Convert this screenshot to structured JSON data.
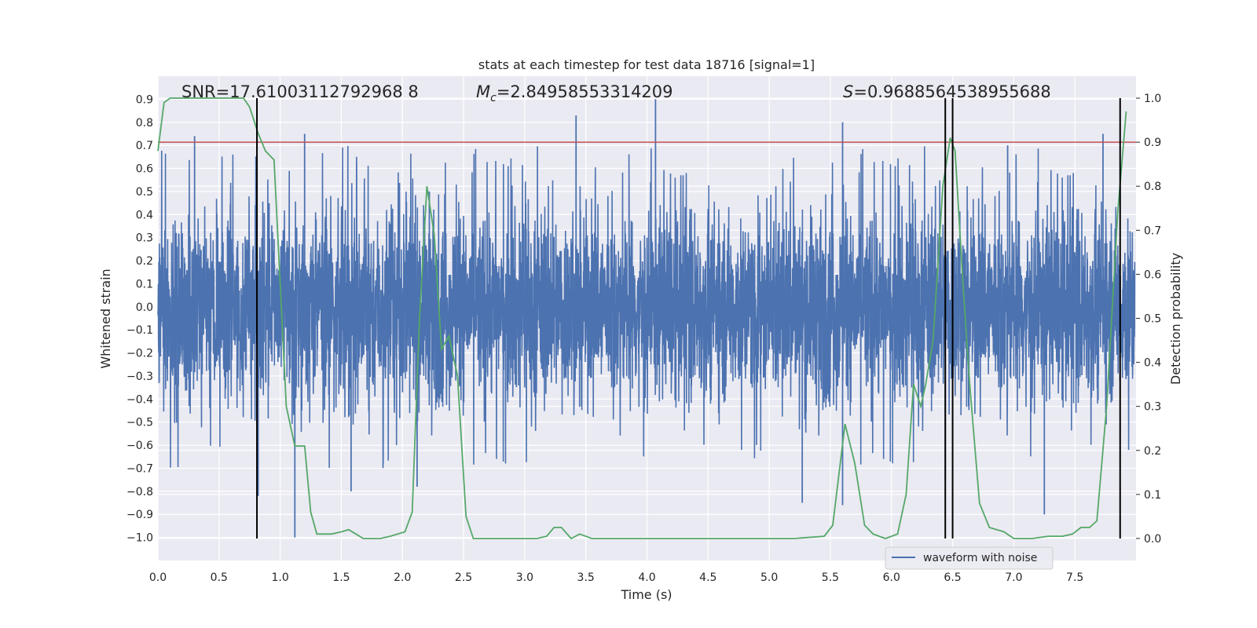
{
  "chart_data": {
    "type": "line",
    "title": "stats at each timestep for test data 18716 [signal=1]",
    "xlabel": "Time (s)",
    "ylabel": "Whitened strain",
    "y2label": "Detection probability",
    "xlim": [
      0.0,
      8.0
    ],
    "ylim": [
      -1.1,
      1.0
    ],
    "y2lim": [
      -0.05,
      1.05
    ],
    "xticks": [
      "0.0",
      "0.5",
      "1.0",
      "1.5",
      "2.0",
      "2.5",
      "3.0",
      "3.5",
      "4.0",
      "4.5",
      "5.0",
      "5.5",
      "6.0",
      "6.5",
      "7.0",
      "7.5"
    ],
    "yticks": [
      "0.9",
      "0.8",
      "0.7",
      "0.6",
      "0.5",
      "0.4",
      "0.3",
      "0.2",
      "0.1",
      "0.0",
      "−0.1",
      "−0.2",
      "−0.3",
      "−0.4",
      "−0.5",
      "−0.6",
      "−0.7",
      "−0.8",
      "−0.9",
      "−1.0"
    ],
    "y2ticks": [
      "1.0",
      "0.9",
      "0.8",
      "0.7",
      "0.6",
      "0.5",
      "0.4",
      "0.3",
      "0.2",
      "0.1",
      "0.0"
    ],
    "annotations": {
      "snr": "SNR=17.61003112792968 8",
      "mc_symbol": "M",
      "mc_sub": "c",
      "mc_value": "=2.84958553314209",
      "s_symbol": "S",
      "s_value": "=0.9688564538955688"
    },
    "legend": {
      "label": "waveform with noise",
      "location": "lower-right"
    },
    "threshold": {
      "value": 0.9,
      "axis": "right",
      "color": "#c44e52"
    },
    "vertical_markers": [
      0.81,
      6.44,
      6.5,
      7.87
    ],
    "colors": {
      "waveform": "#4c72b0",
      "probability": "#55a868",
      "threshold": "#c44e52",
      "markers": "#000000"
    },
    "series": [
      {
        "name": "waveform with noise",
        "axis": "left",
        "style": "dense noisy strain, envelope roughly ±0.5 with spikes",
        "spikes": [
          {
            "x": 0.3,
            "y": 0.74
          },
          {
            "x": 1.2,
            "y": 0.75
          },
          {
            "x": 2.22,
            "y": 0.5
          },
          {
            "x": 3.42,
            "y": 0.83
          },
          {
            "x": 4.07,
            "y": 0.9
          },
          {
            "x": 5.6,
            "y": 0.8
          },
          {
            "x": 6.95,
            "y": 0.7
          },
          {
            "x": 7.73,
            "y": 0.75
          },
          {
            "x": 0.82,
            "y": -0.82
          },
          {
            "x": 1.12,
            "y": -1.0
          },
          {
            "x": 1.58,
            "y": -0.8
          },
          {
            "x": 2.12,
            "y": -0.78
          },
          {
            "x": 5.27,
            "y": -0.85
          },
          {
            "x": 5.6,
            "y": -0.86
          },
          {
            "x": 6.44,
            "y": -0.75
          },
          {
            "x": 7.25,
            "y": -0.9
          }
        ]
      },
      {
        "name": "detection probability",
        "axis": "right",
        "x": [
          0.0,
          0.05,
          0.1,
          0.2,
          0.3,
          0.4,
          0.5,
          0.6,
          0.7,
          0.75,
          0.82,
          0.88,
          0.95,
          1.05,
          1.12,
          1.2,
          1.25,
          1.3,
          1.36,
          1.42,
          1.5,
          1.56,
          1.62,
          1.68,
          1.75,
          1.82,
          1.9,
          2.02,
          2.08,
          2.14,
          2.2,
          2.26,
          2.32,
          2.38,
          2.45,
          2.52,
          2.58,
          2.7,
          2.9,
          3.1,
          3.18,
          3.24,
          3.3,
          3.38,
          3.45,
          3.55,
          3.8,
          4.2,
          4.5,
          4.8,
          5.2,
          5.45,
          5.52,
          5.62,
          5.7,
          5.78,
          5.85,
          5.95,
          6.05,
          6.12,
          6.18,
          6.24,
          6.28,
          6.34,
          6.42,
          6.48,
          6.52,
          6.58,
          6.64,
          6.72,
          6.8,
          6.92,
          7.0,
          7.15,
          7.28,
          7.4,
          7.48,
          7.55,
          7.62,
          7.68,
          7.76,
          7.85,
          7.92
        ],
        "y": [
          0.88,
          0.99,
          1.0,
          1.0,
          1.0,
          1.0,
          1.0,
          1.0,
          1.0,
          0.98,
          0.92,
          0.88,
          0.86,
          0.3,
          0.21,
          0.21,
          0.06,
          0.01,
          0.01,
          0.01,
          0.015,
          0.02,
          0.01,
          0.0,
          0.0,
          0.0,
          0.005,
          0.015,
          0.06,
          0.5,
          0.8,
          0.69,
          0.43,
          0.46,
          0.37,
          0.05,
          0.0,
          0.0,
          0.0,
          0.0,
          0.005,
          0.025,
          0.025,
          0.0,
          0.01,
          0.0,
          0.0,
          0.0,
          0.0,
          0.0,
          0.0,
          0.005,
          0.03,
          0.26,
          0.17,
          0.03,
          0.01,
          0.0,
          0.01,
          0.1,
          0.35,
          0.3,
          0.35,
          0.45,
          0.8,
          0.91,
          0.88,
          0.6,
          0.35,
          0.08,
          0.025,
          0.015,
          0.0,
          0.0,
          0.005,
          0.005,
          0.01,
          0.025,
          0.025,
          0.04,
          0.3,
          0.74,
          0.97
        ]
      }
    ]
  }
}
